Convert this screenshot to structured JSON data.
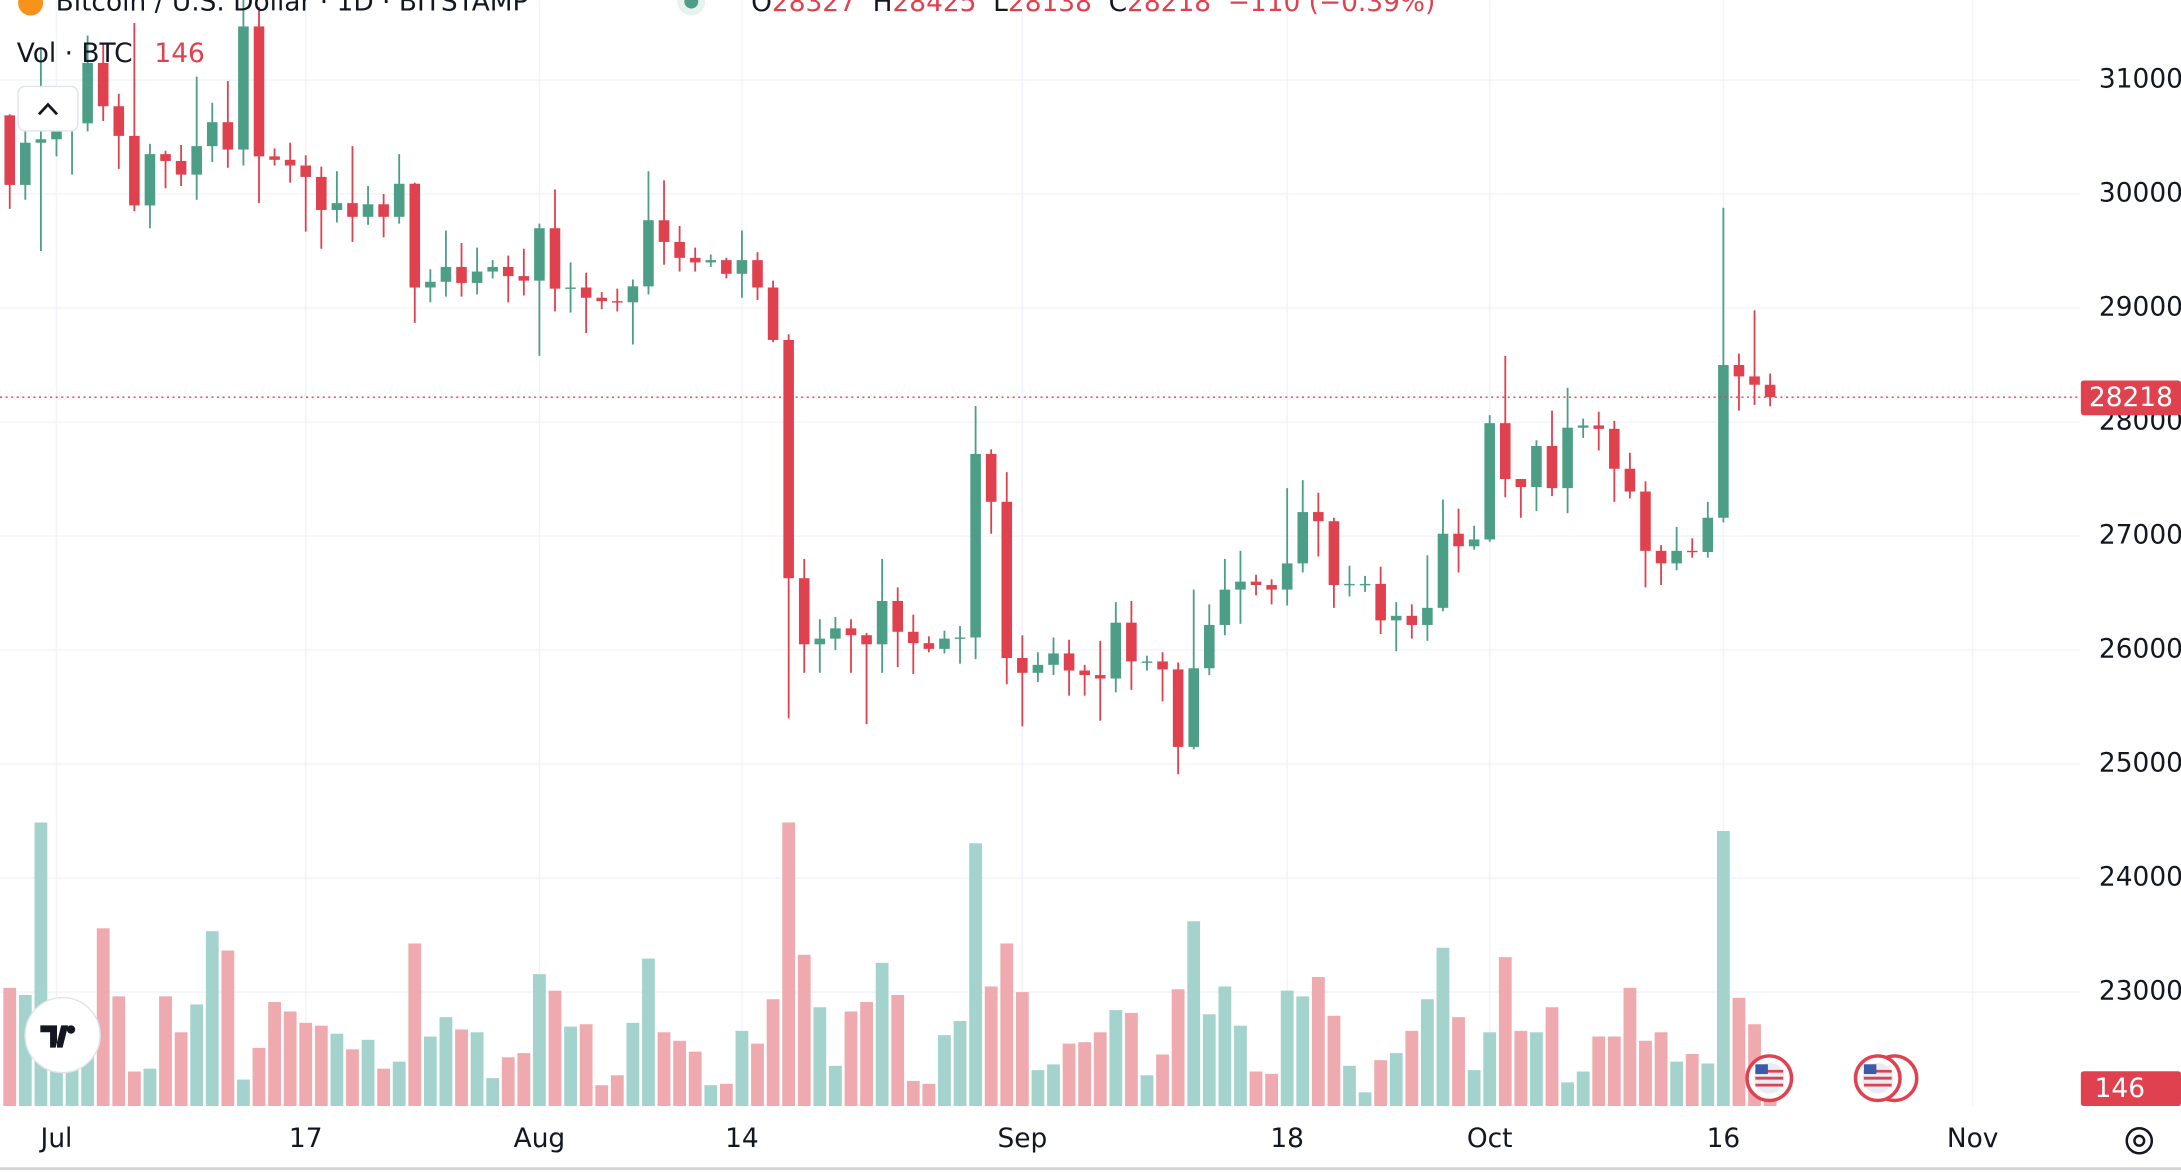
{
  "chart_data": {
    "type": "candlestick",
    "title": "Bitcoin / U.S. Dollar · 1D · BITSTAMP",
    "ohlc_labels": [
      "O",
      "H",
      "L",
      "C"
    ],
    "change": "−110 (−0.39%)",
    "volume_label": "Vol · BTC",
    "x": [
      "Jun 28",
      "Jun 29",
      "Jun 30",
      "Jul 1",
      "Jul 2",
      "Jul 3",
      "Jul 4",
      "Jul 5",
      "Jul 6",
      "Jul 7",
      "Jul 8",
      "Jul 9",
      "Jul 10",
      "Jul 11",
      "Jul 12",
      "Jul 13",
      "Jul 14",
      "Jul 15",
      "Jul 16",
      "Jul 17",
      "Jul 18",
      "Jul 19",
      "Jul 20",
      "Jul 21",
      "Jul 22",
      "Jul 23",
      "Jul 24",
      "Jul 25",
      "Jul 26",
      "Jul 27",
      "Jul 28",
      "Jul 29",
      "Jul 30",
      "Jul 31",
      "Aug 1",
      "Aug 2",
      "Aug 3",
      "Aug 4",
      "Aug 5",
      "Aug 6",
      "Aug 7",
      "Aug 8",
      "Aug 9",
      "Aug 10",
      "Aug 11",
      "Aug 12",
      "Aug 13",
      "Aug 14",
      "Aug 15",
      "Aug 16",
      "Aug 17",
      "Aug 18",
      "Aug 19",
      "Aug 20",
      "Aug 21",
      "Aug 22",
      "Aug 23",
      "Aug 24",
      "Aug 25",
      "Aug 26",
      "Aug 27",
      "Aug 28",
      "Aug 29",
      "Aug 30",
      "Aug 31",
      "Sep 1",
      "Sep 2",
      "Sep 3",
      "Sep 4",
      "Sep 5",
      "Sep 6",
      "Sep 7",
      "Sep 8",
      "Sep 9",
      "Sep 10",
      "Sep 11",
      "Sep 12",
      "Sep 13",
      "Sep 14",
      "Sep 15",
      "Sep 16",
      "Sep 17",
      "Sep 18",
      "Sep 19",
      "Sep 20",
      "Sep 21",
      "Sep 22",
      "Sep 23",
      "Sep 24",
      "Sep 25",
      "Sep 26",
      "Sep 27",
      "Sep 28",
      "Sep 29",
      "Sep 30",
      "Oct 1",
      "Oct 2",
      "Oct 3",
      "Oct 4",
      "Oct 5",
      "Oct 6",
      "Oct 7",
      "Oct 8",
      "Oct 9",
      "Oct 10",
      "Oct 11",
      "Oct 12",
      "Oct 13",
      "Oct 14",
      "Oct 15",
      "Oct 16",
      "Oct 17",
      "Oct 18",
      "Oct 19"
    ],
    "open": [
      30690,
      30080,
      30450,
      30480,
      30590,
      30620,
      31150,
      30770,
      30510,
      29900,
      30350,
      30290,
      30170,
      30420,
      30630,
      30390,
      31470,
      30330,
      30300,
      30250,
      30150,
      29860,
      29920,
      29800,
      29910,
      29800,
      30090,
      29180,
      29230,
      29360,
      29220,
      29320,
      29360,
      29280,
      29240,
      29700,
      29170,
      29180,
      29090,
      29060,
      29050,
      29190,
      29770,
      29580,
      29440,
      29400,
      29420,
      29300,
      29420,
      29180,
      28720,
      26630,
      26050,
      26100,
      26190,
      26130,
      26050,
      26430,
      26160,
      26060,
      26010,
      26100,
      26110,
      27720,
      27300,
      25930,
      25800,
      25870,
      25970,
      25820,
      25780,
      25750,
      26240,
      25900,
      25900,
      25830,
      25150,
      25840,
      26220,
      26530,
      26600,
      26570,
      26530,
      26760,
      27210,
      27130,
      26570,
      26580,
      26580,
      26260,
      26300,
      26220,
      26370,
      27020,
      26910,
      26970,
      27990,
      27500,
      27430,
      27790,
      27420,
      27950,
      27970,
      27940,
      27590,
      27390,
      26870,
      26760,
      26870,
      26860,
      27160,
      28500,
      28400,
      28327
    ],
    "high": [
      30700,
      30800,
      31280,
      30650,
      30780,
      31390,
      31320,
      30880,
      31500,
      30440,
      30380,
      30430,
      31030,
      30800,
      30990,
      31820,
      31640,
      30400,
      30450,
      30340,
      30240,
      30200,
      30420,
      30070,
      30000,
      30350,
      30100,
      29340,
      29680,
      29570,
      29530,
      29420,
      29460,
      29520,
      29740,
      30040,
      29400,
      29310,
      29140,
      29170,
      29250,
      30200,
      30120,
      29720,
      29530,
      29470,
      29440,
      29680,
      29490,
      29240,
      28770,
      26800,
      26270,
      26290,
      26270,
      26150,
      26800,
      26550,
      26310,
      26120,
      26170,
      26210,
      28140,
      27760,
      27560,
      26130,
      25980,
      26110,
      26090,
      25870,
      26080,
      26420,
      26430,
      25950,
      25980,
      25890,
      26530,
      26400,
      26800,
      26870,
      26660,
      26620,
      27420,
      27490,
      27380,
      27160,
      26740,
      26650,
      26730,
      26420,
      26400,
      26830,
      27320,
      27240,
      27090,
      28060,
      28580,
      27500,
      27840,
      28100,
      28300,
      28030,
      28090,
      28010,
      27730,
      27480,
      26920,
      27080,
      26980,
      27300,
      29880,
      28600,
      28980,
      28425
    ],
    "low": [
      29870,
      29950,
      29500,
      30330,
      30170,
      30550,
      30640,
      30220,
      29850,
      29700,
      30050,
      30070,
      29950,
      30280,
      30230,
      30250,
      29920,
      30250,
      30100,
      29670,
      29520,
      29750,
      29580,
      29730,
      29620,
      29740,
      28870,
      29050,
      29100,
      29100,
      29120,
      29260,
      29050,
      29110,
      28580,
      28970,
      28960,
      28780,
      28990,
      28970,
      28680,
      29120,
      29380,
      29320,
      29320,
      29360,
      29260,
      29090,
      29070,
      28700,
      25400,
      25800,
      25800,
      26000,
      25800,
      25350,
      25800,
      25850,
      25790,
      25980,
      25970,
      25880,
      25920,
      27020,
      25700,
      25330,
      25720,
      25780,
      25600,
      25600,
      25380,
      25630,
      25650,
      25820,
      25550,
      24910,
      25130,
      25780,
      26130,
      26230,
      26480,
      26400,
      26390,
      26680,
      26820,
      26370,
      26470,
      26510,
      26140,
      25990,
      26100,
      26080,
      26340,
      26680,
      26880,
      26950,
      27340,
      27160,
      27220,
      27350,
      27200,
      27860,
      27750,
      27300,
      27330,
      26550,
      26570,
      26700,
      26810,
      26810,
      27120,
      28100,
      28150,
      28138
    ],
    "close": [
      30080,
      30450,
      30480,
      30590,
      30620,
      31150,
      30770,
      30510,
      29900,
      30350,
      30290,
      30170,
      30420,
      30630,
      30390,
      31470,
      30330,
      30300,
      30250,
      30150,
      29860,
      29920,
      29800,
      29910,
      29800,
      30090,
      29180,
      29230,
      29360,
      29220,
      29320,
      29360,
      29280,
      29240,
      29700,
      29170,
      29180,
      29090,
      29060,
      29050,
      29190,
      29770,
      29580,
      29440,
      29400,
      29420,
      29300,
      29420,
      29180,
      28720,
      26630,
      26050,
      26100,
      26190,
      26130,
      26050,
      26430,
      26160,
      26060,
      26010,
      26100,
      26110,
      27720,
      27300,
      25930,
      25800,
      25870,
      25970,
      25820,
      25780,
      25750,
      26240,
      25900,
      25900,
      25830,
      25150,
      25840,
      26220,
      26530,
      26600,
      26570,
      26530,
      26760,
      27210,
      27130,
      26570,
      26580,
      26580,
      26260,
      26300,
      26220,
      26370,
      27020,
      26910,
      26970,
      27990,
      27500,
      27430,
      27790,
      27420,
      27950,
      27970,
      27940,
      27590,
      27390,
      26870,
      26760,
      26870,
      26860,
      27160,
      28500,
      28400,
      28327,
      28218
    ],
    "volume": [
      2500,
      2350,
      6000,
      1600,
      1030,
      1470,
      3760,
      2320,
      730,
      790,
      2320,
      1560,
      2150,
      3700,
      3290,
      560,
      1230,
      2200,
      2000,
      1760,
      1700,
      1530,
      1200,
      1400,
      790,
      940,
      3440,
      1470,
      1880,
      1620,
      1560,
      590,
      1030,
      1120,
      2790,
      2440,
      1680,
      1730,
      440,
      650,
      1760,
      3120,
      1560,
      1380,
      1150,
      440,
      470,
      1590,
      1320,
      2260,
      6000,
      3200,
      2090,
      850,
      2000,
      2200,
      3030,
      2350,
      530,
      470,
      1500,
      1800,
      5560,
      2530,
      3440,
      2410,
      760,
      880,
      1320,
      1350,
      1560,
      2030,
      1970,
      650,
      1090,
      2470,
      3910,
      1940,
      2530,
      1700,
      730,
      680,
      2440,
      2320,
      2730,
      1910,
      850,
      290,
      970,
      1120,
      1590,
      2260,
      3350,
      1880,
      760,
      1560,
      3150,
      1590,
      1560,
      2090,
      500,
      730,
      1470,
      1470,
      2500,
      1380,
      1560,
      940,
      1100,
      900,
      5820,
      2290,
      1730,
      146
    ],
    "ylim": [
      22000,
      31700
    ],
    "yticks": [
      23000,
      24000,
      25000,
      26000,
      27000,
      28000,
      29000,
      30000,
      31000
    ],
    "xticks": [
      {
        "value": "Jul 1",
        "label": "Jul"
      },
      {
        "value": "Jul 17",
        "label": "17"
      },
      {
        "value": "Aug 1",
        "label": "Aug"
      },
      {
        "value": "Aug 14",
        "label": "14"
      },
      {
        "value": "Sep 1",
        "label": "Sep"
      },
      {
        "value": "Sep 18",
        "label": "18"
      },
      {
        "value": "Oct 1",
        "label": "Oct"
      },
      {
        "value": "Oct 16",
        "label": "16"
      },
      {
        "value": "Nov 1",
        "label": "Nov"
      }
    ],
    "volume_ylim": [
      0,
      23400
    ],
    "up_color": "#4c9e86",
    "down_color": "#e0414f",
    "up_volume_color": "#a4d3cd",
    "down_volume_color": "#eeaaae",
    "grid": true
  }
}
